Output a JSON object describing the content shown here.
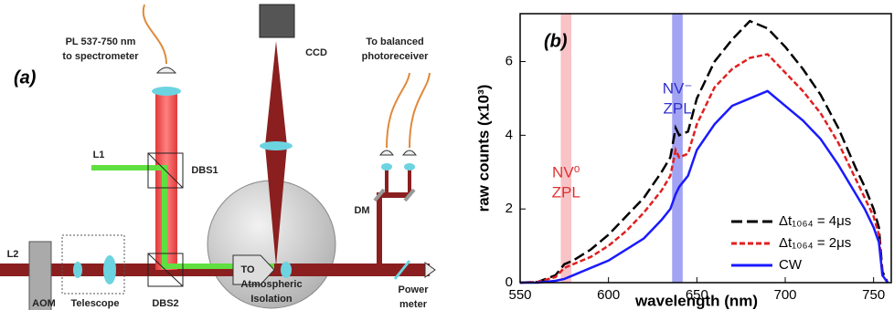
{
  "diagram": {
    "panel_label": "(a)",
    "labels": [
      "PL 537-750 nm",
      "to spectrometer",
      "CCD",
      "To balanced",
      "photoreceiver",
      "L1",
      "DBS1",
      "L2",
      "DM",
      "TO",
      "AOM",
      "Telescope",
      "DBS2",
      "Atmospheric",
      "Isolation",
      "Power",
      "meter"
    ]
  },
  "chart_data": {
    "type": "line",
    "panel_label": "(b)",
    "x_label": "wavelength (nm)",
    "y_label": "raw counts (x10³)",
    "x": [
      550,
      560,
      570,
      575,
      580,
      590,
      600,
      610,
      620,
      630,
      635,
      638,
      640,
      645,
      650,
      660,
      670,
      680,
      690,
      700,
      710,
      720,
      730,
      740,
      745,
      750,
      753,
      755,
      758
    ],
    "series": [
      {
        "name": "Δt₁₀₆₄ = 4μs",
        "color": "#000000",
        "style": "dashed",
        "values": [
          0,
          0.02,
          0.2,
          0.5,
          0.6,
          0.9,
          1.3,
          1.8,
          2.3,
          3.0,
          3.4,
          4.2,
          4.0,
          4.1,
          5.0,
          6.0,
          6.6,
          7.1,
          6.9,
          6.4,
          5.8,
          5.1,
          4.2,
          3.1,
          2.6,
          2.0,
          1.5,
          0.3,
          0
        ]
      },
      {
        "name": "Δt₁₀₆₄ = 2μs",
        "color": "#e02020",
        "style": "dotted",
        "values": [
          0,
          0.02,
          0.15,
          0.4,
          0.5,
          0.7,
          1.0,
          1.4,
          1.9,
          2.5,
          2.9,
          3.6,
          3.4,
          3.5,
          4.3,
          5.3,
          5.8,
          6.1,
          6.2,
          5.7,
          5.2,
          4.6,
          3.8,
          2.8,
          2.3,
          1.8,
          1.3,
          0.2,
          0
        ]
      },
      {
        "name": "CW",
        "color": "#1a1aff",
        "style": "solid",
        "values": [
          0,
          0,
          0.05,
          0.1,
          0.2,
          0.4,
          0.6,
          0.9,
          1.2,
          1.7,
          2.0,
          2.4,
          2.6,
          2.9,
          3.6,
          4.3,
          4.8,
          5.0,
          5.2,
          4.8,
          4.4,
          3.9,
          3.2,
          2.4,
          2.0,
          1.5,
          1.1,
          0.2,
          0
        ]
      }
    ],
    "bands": [
      {
        "x": [
          573,
          579
        ],
        "color": "#f6b4b8",
        "label_lines": [
          "NV⁰",
          "ZPL"
        ],
        "label_color": "#e03030"
      },
      {
        "x": [
          636,
          642
        ],
        "color": "#8c8cf0",
        "label_lines": [
          "NV⁻",
          "ZPL"
        ],
        "label_color": "#3030d0"
      }
    ],
    "xlim": [
      550,
      760
    ],
    "ylim": [
      0,
      7.3
    ],
    "xticks": [
      550,
      600,
      650,
      700,
      750
    ],
    "yticks": [
      0,
      2,
      4,
      6
    ]
  }
}
